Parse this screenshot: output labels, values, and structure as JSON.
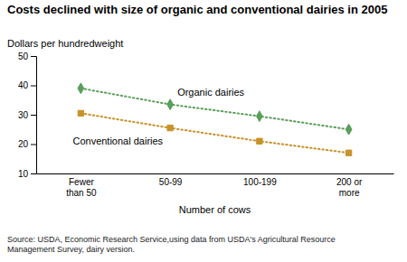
{
  "chart_data": {
    "type": "line",
    "title": "Costs declined with size of organic and conventional dairies in 2005",
    "ylabel": "Dollars per hundredweight",
    "xlabel": "Number of cows",
    "source": "Source: USDA, Economic Research Service,using data from USDA's Agricultural Resource\nManagement Survey, dairy version.",
    "categories": [
      "Fewer\nthan 50",
      "50-99",
      "100-199",
      "200 or\nmore"
    ],
    "series": [
      {
        "name": "Organic dairies",
        "color": "#5a9e5a",
        "marker": "diamond",
        "line_style": "dotted",
        "values": [
          39,
          33.5,
          29.5,
          25
        ]
      },
      {
        "name": "Conventional dairies",
        "color": "#c8922a",
        "marker": "square",
        "line_style": "dotted",
        "values": [
          30.5,
          25.5,
          21,
          17
        ]
      }
    ],
    "ylim": [
      10,
      50
    ],
    "yticks": [
      10,
      20,
      30,
      40,
      50
    ],
    "grid": false
  }
}
